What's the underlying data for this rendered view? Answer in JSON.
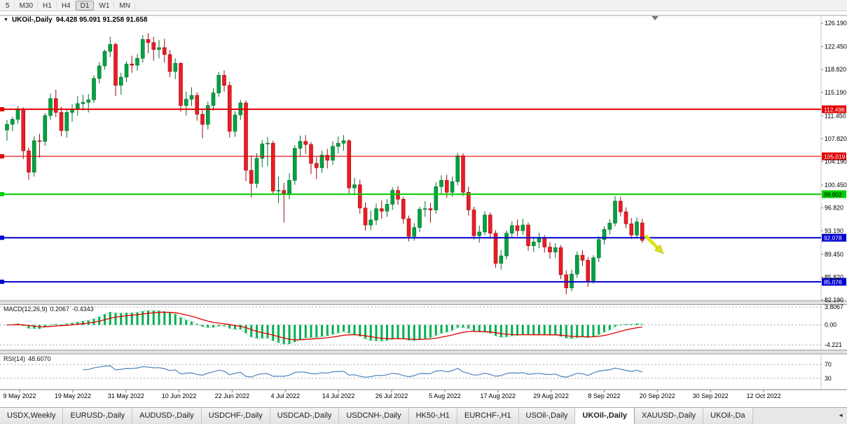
{
  "toolbar": {
    "timeframes": [
      "5",
      "M30",
      "H1",
      "H4",
      "D1",
      "W1",
      "MN"
    ],
    "active": "D1"
  },
  "chart": {
    "title_symbol": "UKOil-,Daily",
    "title_ohlc": "94.428 95.091 91.258 91.658",
    "price_axis_labels": [
      "126.190",
      "122.450",
      "118.820",
      "115.190",
      "111.450",
      "107.820",
      "104.190",
      "100.450",
      "96.820",
      "93.190",
      "89.450",
      "85.820",
      "82.190"
    ],
    "date_labels": [
      "9 May 2022",
      "19 May 2022",
      "31 May 2022",
      "10 Jun 2022",
      "22 Jun 2022",
      "4 Jul 2022",
      "14 Jul 2022",
      "26 Jul 2022",
      "5 Aug 2022",
      "17 Aug 2022",
      "29 Aug 2022",
      "8 Sep 2022",
      "20 Sep 2022",
      "30 Sep 2022",
      "12 Oct 2022"
    ],
    "levels": [
      {
        "price": 112.498,
        "label": "112.498",
        "color": "#e00000",
        "text_color": "#ffffff",
        "width": 2
      },
      {
        "price": 105.019,
        "label": "105.019",
        "color": "#e00000",
        "text_color": "#ffffff",
        "width": 1.2
      },
      {
        "price": 99.002,
        "label": "99.002",
        "color": "#00d000",
        "text_color": "#000000",
        "width": 2
      },
      {
        "price": 92.078,
        "label": "92.078",
        "color": "#0000d0",
        "text_color": "#ffffff",
        "width": 2
      },
      {
        "price": 85.076,
        "label": "85.076",
        "color": "#0000d0",
        "text_color": "#ffffff",
        "width": 2
      }
    ],
    "colors": {
      "bull": "#00a241",
      "bull_edge": "#006e2c",
      "bear": "#ed1c24",
      "bear_edge": "#9e0b0f"
    },
    "annotation_arrow_color": "#dce31c"
  },
  "chart_data": {
    "type": "candlestick",
    "symbol": "UKOil-",
    "period": "Daily",
    "ylim": [
      82.19,
      126.19
    ],
    "candles": [
      [
        109.2,
        110.8,
        107.5,
        110.1
      ],
      [
        110.1,
        111.3,
        109.0,
        110.9
      ],
      [
        110.9,
        113.0,
        110.2,
        112.4
      ],
      [
        112.4,
        112.8,
        104.6,
        105.9
      ],
      [
        105.9,
        106.4,
        101.3,
        102.5
      ],
      [
        102.5,
        108.2,
        101.8,
        107.5
      ],
      [
        107.5,
        108.6,
        104.8,
        107.4
      ],
      [
        107.4,
        111.9,
        106.7,
        111.5
      ],
      [
        111.5,
        115.0,
        110.8,
        114.2
      ],
      [
        114.2,
        115.6,
        111.2,
        112.0
      ],
      [
        112.0,
        112.9,
        108.2,
        109.1
      ],
      [
        109.1,
        112.4,
        108.0,
        112.0
      ],
      [
        112.0,
        113.3,
        110.5,
        112.5
      ],
      [
        112.5,
        114.6,
        111.5,
        113.4
      ],
      [
        113.4,
        114.8,
        112.3,
        113.6
      ],
      [
        113.6,
        114.9,
        112.0,
        114.0
      ],
      [
        114.0,
        117.9,
        113.5,
        117.4
      ],
      [
        117.4,
        120.0,
        116.6,
        119.4
      ],
      [
        119.4,
        122.0,
        118.8,
        121.7
      ],
      [
        121.7,
        124.0,
        120.8,
        122.8
      ],
      [
        122.8,
        123.1,
        114.6,
        116.3
      ],
      [
        116.3,
        118.3,
        114.8,
        117.6
      ],
      [
        117.6,
        120.1,
        116.8,
        119.7
      ],
      [
        119.7,
        121.0,
        118.3,
        119.5
      ],
      [
        119.5,
        121.3,
        118.6,
        120.6
      ],
      [
        120.6,
        124.3,
        119.9,
        123.6
      ],
      [
        123.6,
        124.6,
        121.4,
        123.1
      ],
      [
        123.1,
        124.0,
        120.2,
        122.0
      ],
      [
        122.0,
        123.5,
        120.6,
        122.3
      ],
      [
        122.3,
        123.7,
        119.9,
        121.2
      ],
      [
        121.2,
        121.9,
        117.6,
        118.5
      ],
      [
        118.5,
        120.6,
        117.3,
        119.8
      ],
      [
        119.8,
        120.0,
        112.1,
        113.1
      ],
      [
        113.1,
        115.3,
        111.5,
        114.1
      ],
      [
        114.1,
        116.0,
        113.0,
        114.7
      ],
      [
        114.7,
        115.2,
        110.7,
        111.7
      ],
      [
        111.7,
        112.6,
        107.9,
        110.1
      ],
      [
        110.1,
        113.7,
        109.3,
        113.1
      ],
      [
        113.1,
        115.8,
        112.3,
        115.1
      ],
      [
        115.1,
        118.4,
        114.5,
        117.9
      ],
      [
        117.9,
        118.7,
        115.3,
        116.3
      ],
      [
        116.3,
        116.9,
        108.0,
        109.0
      ],
      [
        109.0,
        112.2,
        108.1,
        111.6
      ],
      [
        111.6,
        114.0,
        110.8,
        113.5
      ],
      [
        113.5,
        113.9,
        101.1,
        102.8
      ],
      [
        102.8,
        105.2,
        98.5,
        100.7
      ],
      [
        100.7,
        105.5,
        100.0,
        104.7
      ],
      [
        104.7,
        107.6,
        103.3,
        107.0
      ],
      [
        107.0,
        108.1,
        103.5,
        107.1
      ],
      [
        107.1,
        107.5,
        98.9,
        99.5
      ],
      [
        99.5,
        101.8,
        97.6,
        99.6
      ],
      [
        99.6,
        100.8,
        94.5,
        99.1
      ],
      [
        99.1,
        102.3,
        98.2,
        101.2
      ],
      [
        101.2,
        106.8,
        100.5,
        106.3
      ],
      [
        106.3,
        108.3,
        105.1,
        107.4
      ],
      [
        107.4,
        108.4,
        105.4,
        106.9
      ],
      [
        106.9,
        107.3,
        102.2,
        103.9
      ],
      [
        103.9,
        104.9,
        101.4,
        103.2
      ],
      [
        103.2,
        105.9,
        102.4,
        105.2
      ],
      [
        105.2,
        106.2,
        103.1,
        104.4
      ],
      [
        104.4,
        107.4,
        103.7,
        106.6
      ],
      [
        106.6,
        108.2,
        105.5,
        107.1
      ],
      [
        107.1,
        108.4,
        105.9,
        107.5
      ],
      [
        107.5,
        107.7,
        99.1,
        100.0
      ],
      [
        100.0,
        101.6,
        98.8,
        100.5
      ],
      [
        100.5,
        101.3,
        95.9,
        96.8
      ],
      [
        96.8,
        97.7,
        93.2,
        94.1
      ],
      [
        94.1,
        96.4,
        93.3,
        94.9
      ],
      [
        94.9,
        97.5,
        94.1,
        96.7
      ],
      [
        96.7,
        98.0,
        95.1,
        96.3
      ],
      [
        96.3,
        98.2,
        95.4,
        97.4
      ],
      [
        97.4,
        100.1,
        96.5,
        99.6
      ],
      [
        99.6,
        100.3,
        97.3,
        98.2
      ],
      [
        98.2,
        98.6,
        94.3,
        95.1
      ],
      [
        95.1,
        95.6,
        91.5,
        92.3
      ],
      [
        92.3,
        94.4,
        91.6,
        93.7
      ],
      [
        93.7,
        97.0,
        93.0,
        96.6
      ],
      [
        96.6,
        97.9,
        95.4,
        96.7
      ],
      [
        96.7,
        97.6,
        94.5,
        96.5
      ],
      [
        96.5,
        100.9,
        95.9,
        100.2
      ],
      [
        100.2,
        102.0,
        99.1,
        101.2
      ],
      [
        101.2,
        102.1,
        98.4,
        99.3
      ],
      [
        99.3,
        101.8,
        98.6,
        101.0
      ],
      [
        101.0,
        105.6,
        100.4,
        105.1
      ],
      [
        105.1,
        105.5,
        98.7,
        99.3
      ],
      [
        99.3,
        100.2,
        95.6,
        96.5
      ],
      [
        96.5,
        97.0,
        91.8,
        92.4
      ],
      [
        92.4,
        94.0,
        91.3,
        93.0
      ],
      [
        93.0,
        96.3,
        92.5,
        95.7
      ],
      [
        95.7,
        96.1,
        91.9,
        92.8
      ],
      [
        92.8,
        93.3,
        87.3,
        88.0
      ],
      [
        88.0,
        90.1,
        87.0,
        89.2
      ],
      [
        89.2,
        93.2,
        88.6,
        92.8
      ],
      [
        92.8,
        94.7,
        92.0,
        94.0
      ],
      [
        94.0,
        95.0,
        92.3,
        93.2
      ],
      [
        93.2,
        95.1,
        92.5,
        94.1
      ],
      [
        94.1,
        94.5,
        90.0,
        90.8
      ],
      [
        90.8,
        92.2,
        89.8,
        91.4
      ],
      [
        91.4,
        92.9,
        90.4,
        92.0
      ],
      [
        92.0,
        92.5,
        89.7,
        90.6
      ],
      [
        90.6,
        91.4,
        88.7,
        89.8
      ],
      [
        89.8,
        91.2,
        88.9,
        90.5
      ],
      [
        90.5,
        90.9,
        85.5,
        86.2
      ],
      [
        86.2,
        86.9,
        83.1,
        84.1
      ],
      [
        84.1,
        87.0,
        83.6,
        86.3
      ],
      [
        86.3,
        89.9,
        85.7,
        89.3
      ],
      [
        89.3,
        90.1,
        87.6,
        88.5
      ],
      [
        88.5,
        89.0,
        84.3,
        85.1
      ],
      [
        85.1,
        89.3,
        84.8,
        88.9
      ],
      [
        88.9,
        92.3,
        88.2,
        91.8
      ],
      [
        91.8,
        93.9,
        91.0,
        93.4
      ],
      [
        93.4,
        95.0,
        92.6,
        94.4
      ],
      [
        94.4,
        98.7,
        93.9,
        97.9
      ],
      [
        97.9,
        98.6,
        95.5,
        96.2
      ],
      [
        96.2,
        96.9,
        93.6,
        94.3
      ],
      [
        94.3,
        95.2,
        91.9,
        92.5
      ],
      [
        92.5,
        95.3,
        92.0,
        94.6
      ],
      [
        94.428,
        95.091,
        91.258,
        91.658
      ]
    ]
  },
  "indicators": {
    "macd": {
      "name": "MACD(12,26,9)",
      "value": "0.2067",
      "signal_value": "-0.4343",
      "axis_labels": [
        "3.8067",
        "0.00",
        "-4.221"
      ],
      "histogram_color": "#00b050",
      "signal_color": "#e00000"
    },
    "rsi": {
      "name": "RSI(14)",
      "value": "48.6070",
      "level_labels": [
        "70",
        "30"
      ],
      "line_color": "#4f81bd"
    }
  },
  "tabbar": {
    "tabs": [
      "USDX,Weekly",
      "EURUSD-,Daily",
      "AUDUSD-,Daily",
      "USDCHF-,Daily",
      "USDCAD-,Daily",
      "USDCNH-,Daily",
      "HK50-,H1",
      "EURCHF-,H1",
      "USOil-,Daily",
      "UKOil-,Daily",
      "XAUUSD-,Daily",
      "UKOil-,Da"
    ],
    "active": "UKOil-,Daily"
  }
}
